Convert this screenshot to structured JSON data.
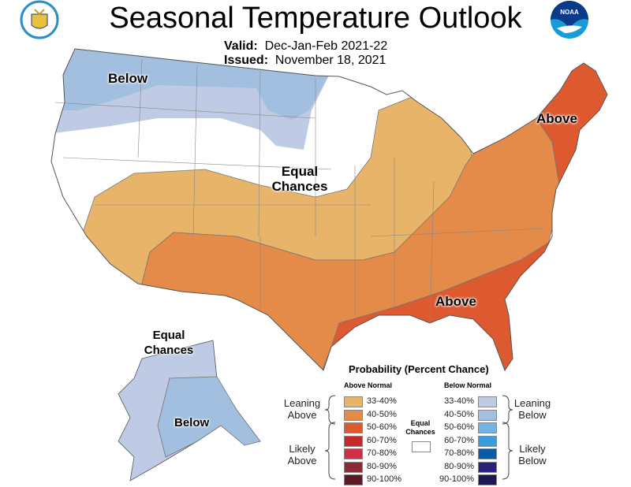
{
  "header": {
    "title": "Seasonal Temperature Outlook",
    "valid_label": "Valid:",
    "valid_value": "Dec-Jan-Feb 2021-22",
    "issued_label": "Issued:",
    "issued_value": "November 18, 2021",
    "logo_left": "Department of Commerce United States of America",
    "logo_right": "NOAA"
  },
  "map_labels": {
    "below_nw": "Below",
    "equal_central": "Equal Chances",
    "above_ne": "Above",
    "above_se": "Above",
    "equal_ak": "Equal Chances",
    "below_ak": "Below"
  },
  "legend": {
    "title": "Probability (Percent Chance)",
    "above_header": "Above Normal",
    "below_header": "Below Normal",
    "leaning_above": "Leaning Above",
    "likely_above": "Likely Above",
    "leaning_below": "Leaning Below",
    "likely_below": "Likely Below",
    "equal": "Equal Chances",
    "above": [
      {
        "range": "33-40%",
        "color": "#E8B46A"
      },
      {
        "range": "40-50%",
        "color": "#E48B4A"
      },
      {
        "range": "50-60%",
        "color": "#DD5A30"
      },
      {
        "range": "60-70%",
        "color": "#C52A2A"
      },
      {
        "range": "70-80%",
        "color": "#D22E48"
      },
      {
        "range": "80-90%",
        "color": "#8C2A36"
      },
      {
        "range": "90-100%",
        "color": "#5C1A22"
      }
    ],
    "below": [
      {
        "range": "33-40%",
        "color": "#BFCBE5"
      },
      {
        "range": "40-50%",
        "color": "#A2BFE0"
      },
      {
        "range": "50-60%",
        "color": "#73B3E3"
      },
      {
        "range": "60-70%",
        "color": "#389DDD"
      },
      {
        "range": "70-80%",
        "color": "#0B5CA8"
      },
      {
        "range": "80-90%",
        "color": "#2B2079"
      },
      {
        "range": "90-100%",
        "color": "#1E1850"
      }
    ]
  }
}
